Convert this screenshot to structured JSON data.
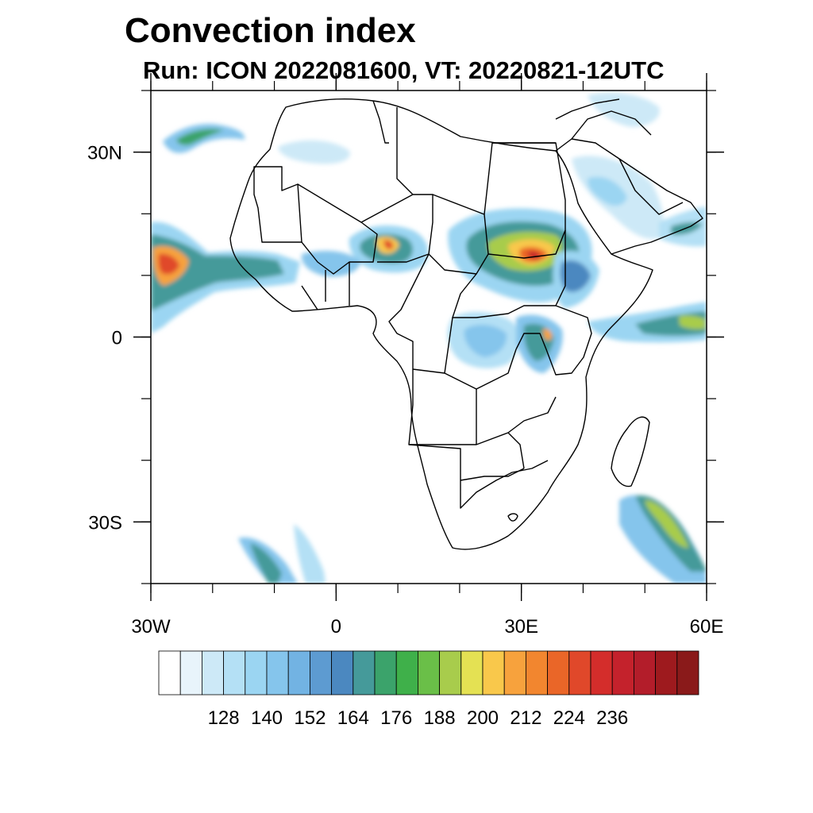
{
  "title": "Convection index",
  "subtitle": "Run: ICON 2022081600,  VT: 20220821-12UTC",
  "map": {
    "projection": "cylindrical-equidistant",
    "lon_range": [
      -30,
      60
    ],
    "lat_range": [
      -40,
      40
    ],
    "x_ticks": [
      {
        "lon": -30,
        "label": "30W"
      },
      {
        "lon": 0,
        "label": "0"
      },
      {
        "lon": 30,
        "label": "30E"
      },
      {
        "lon": 60,
        "label": "60E"
      }
    ],
    "y_ticks": [
      {
        "lat": 30,
        "label": "30N"
      },
      {
        "lat": 0,
        "label": "0"
      },
      {
        "lat": -30,
        "label": "30S"
      }
    ],
    "minor_lon_step": 10,
    "minor_lat_step": 10
  },
  "colorbar": {
    "colors": [
      "#ffffff",
      "#e8f4fb",
      "#cde9f7",
      "#b4e0f5",
      "#9bd5f2",
      "#85c5ec",
      "#72b3e3",
      "#5d9bd1",
      "#4b88c0",
      "#459a9a",
      "#3ba36b",
      "#3fb04a",
      "#6abf48",
      "#a8cc4c",
      "#e4e153",
      "#f9c84b",
      "#f7a23d",
      "#f2862f",
      "#ea6628",
      "#e0482a",
      "#d42d2b",
      "#c4222c",
      "#b31d2a",
      "#9e1a1e",
      "#8a1a1a"
    ],
    "labels": [
      "128",
      "140",
      "152",
      "164",
      "176",
      "188",
      "200",
      "212",
      "224",
      "236"
    ]
  }
}
